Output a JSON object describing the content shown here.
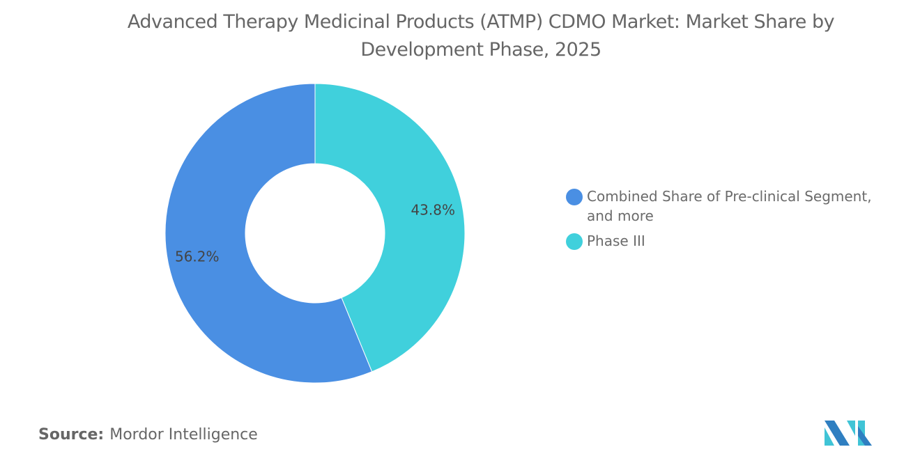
{
  "chart_data": {
    "type": "pie",
    "donut": true,
    "title": "Advanced Therapy Medicinal Products (ATMP) CDMO Market: Market Share by Development Phase, 2025",
    "slices": [
      {
        "label": "Phase III",
        "value": 43.8,
        "display": "43.8%",
        "color": "#40d0dc"
      },
      {
        "label": "Combined Share of Pre-clinical Segment, and more",
        "value": 56.2,
        "display": "56.2%",
        "color": "#4a8fe3"
      }
    ],
    "legend_order": [
      "Combined Share of Pre-clinical Segment, and more",
      "Phase III"
    ],
    "legend_placement": "right"
  },
  "source": {
    "label": "Source:",
    "value": "Mordor Intelligence"
  },
  "logo": {
    "name": "mordor-intelligence-logo",
    "colors": [
      "#2f7fc1",
      "#40c4d6"
    ]
  }
}
